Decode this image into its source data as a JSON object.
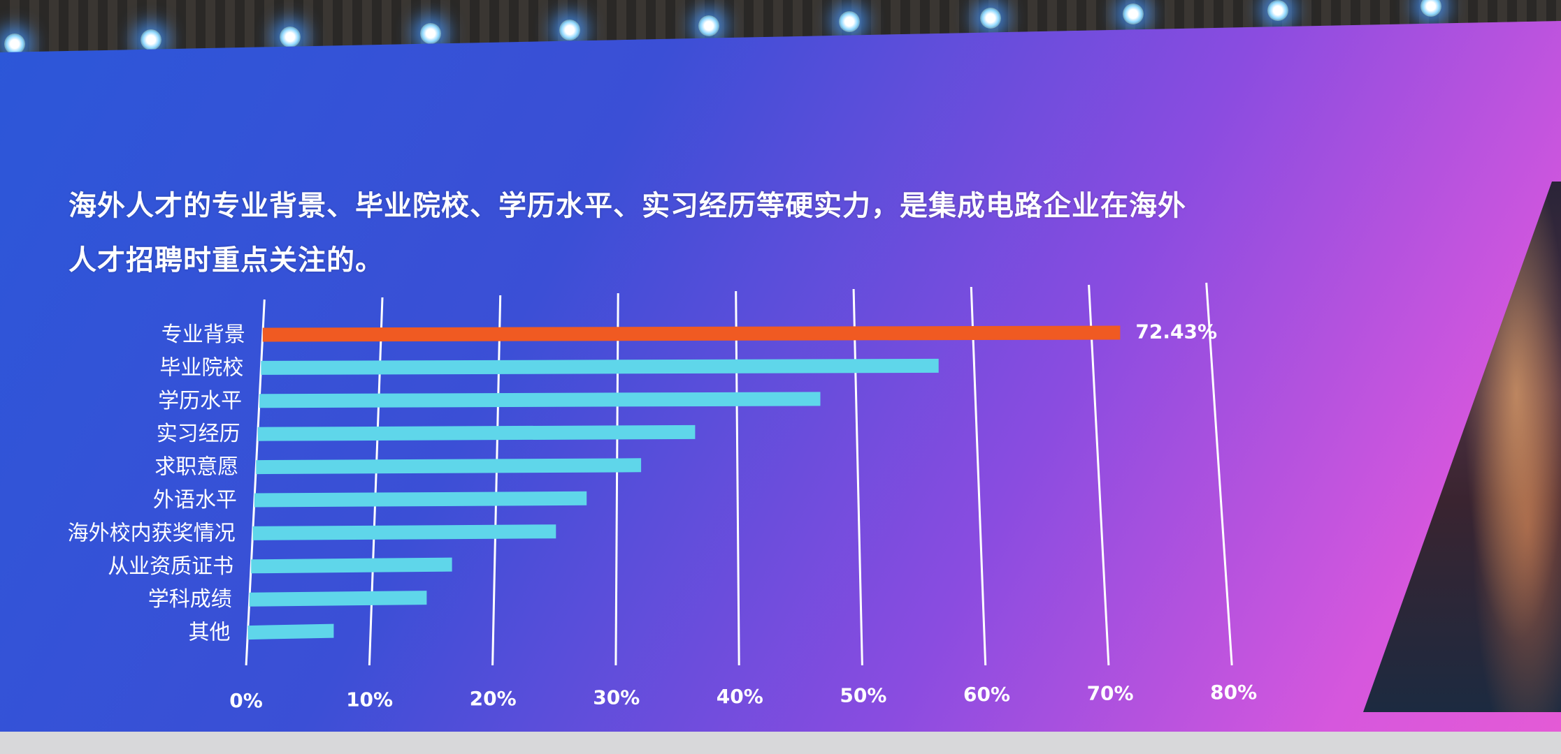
{
  "title_line1": "海外人才的专业背景、毕业院校、学历水平、实习经历等硬实力，是集成电路企业在海外",
  "title_line2": "人才招聘时重点关注的。",
  "colors": {
    "highlight_bar": "#f05a22",
    "bar": "#5fd6ea",
    "gridline": "#ffffff",
    "text": "#ffffff"
  },
  "chart_data": {
    "type": "bar",
    "orientation": "horizontal",
    "title": "",
    "xlabel": "",
    "ylabel": "",
    "xlim": [
      0,
      80
    ],
    "grid": true,
    "categories": [
      "专业背景",
      "毕业院校",
      "学历水平",
      "实习经历",
      "求职意愿",
      "外语水平",
      "海外校内获奖情况",
      "从业资质证书",
      "学科成绩",
      "其他"
    ],
    "values": [
      72.43,
      57,
      47,
      36.5,
      32,
      27.5,
      25,
      16.5,
      14.5,
      7
    ],
    "ticks": [
      "0%",
      "10%",
      "20%",
      "30%",
      "40%",
      "50%",
      "60%",
      "70%",
      "80%"
    ],
    "tick_values": [
      0,
      10,
      20,
      30,
      40,
      50,
      60,
      70,
      80
    ],
    "data_labels": [
      "72.43%",
      "",
      "",
      "",
      "",
      "",
      "",
      "",
      "",
      ""
    ],
    "highlight_index": 0
  }
}
